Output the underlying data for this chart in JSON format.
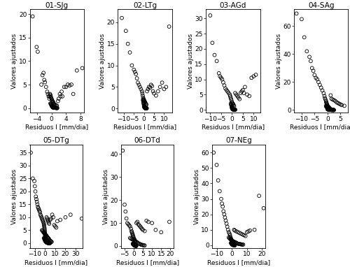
{
  "subplots": [
    {
      "title": "01-SJg",
      "xlim": [
        -6,
        9
      ],
      "ylim": [
        -1,
        21
      ],
      "xticks": [
        -4,
        0,
        4,
        8
      ],
      "yticks": [
        0,
        5,
        10,
        15,
        20
      ],
      "residuals": [
        -5.2,
        -4.1,
        -3.8,
        -2.8,
        -2.5,
        -2.2,
        -2.0,
        -1.8,
        -1.5,
        -1.2,
        -1.0,
        -0.8,
        -0.6,
        -0.5,
        -0.4,
        -0.3,
        -0.2,
        -0.1,
        0.0,
        0.1,
        0.2,
        0.3,
        0.4,
        0.5,
        0.6,
        0.7,
        0.8,
        1.0,
        1.2,
        1.5,
        1.8,
        2.0,
        2.3,
        2.5,
        2.8,
        3.0,
        3.5,
        4.0,
        4.5,
        5.0,
        5.5,
        6.0,
        7.0,
        8.5,
        -0.3,
        -0.2,
        -0.1,
        0.0,
        0.1,
        0.2,
        0.3,
        0.4,
        0.5,
        0.6,
        0.7,
        0.8,
        0.9,
        1.0,
        1.1,
        1.2,
        1.3,
        1.4,
        1.5,
        1.6,
        0.0,
        0.1,
        0.2,
        0.3,
        0.4,
        0.5,
        0.6
      ],
      "fitted": [
        19.5,
        13.0,
        12.0,
        5.0,
        7.0,
        7.5,
        6.0,
        5.5,
        4.5,
        3.5,
        3.0,
        2.5,
        2.0,
        2.5,
        3.0,
        2.8,
        2.5,
        2.2,
        2.0,
        1.8,
        1.6,
        1.5,
        1.3,
        1.2,
        1.0,
        0.9,
        0.8,
        0.7,
        0.6,
        0.5,
        1.5,
        2.0,
        3.0,
        2.5,
        3.5,
        2.5,
        4.5,
        4.5,
        5.0,
        4.8,
        5.0,
        3.0,
        8.0,
        8.5,
        1.0,
        0.9,
        0.8,
        0.7,
        0.6,
        0.5,
        0.4,
        0.3,
        0.2,
        0.15,
        0.12,
        0.1,
        0.08,
        0.06,
        0.05,
        0.04,
        0.03,
        0.02,
        0.01,
        0.01,
        0.5,
        0.4,
        0.3,
        0.2,
        0.15,
        0.1,
        0.05
      ]
    },
    {
      "title": "02-LTg",
      "xlim": [
        -13,
        14
      ],
      "ylim": [
        -1,
        23
      ],
      "xticks": [
        -10,
        -5,
        0,
        5,
        10
      ],
      "yticks": [
        0,
        5,
        10,
        15,
        20
      ],
      "residuals": [
        -11.0,
        -9.0,
        -8.0,
        -7.0,
        -6.0,
        -5.0,
        -4.5,
        -4.0,
        -3.5,
        -3.0,
        -2.5,
        -2.0,
        -1.5,
        -1.0,
        -0.8,
        -0.6,
        -0.4,
        -0.2,
        0.0,
        0.2,
        0.4,
        0.6,
        0.8,
        1.0,
        1.2,
        1.5,
        2.0,
        2.5,
        3.0,
        3.5,
        4.0,
        4.5,
        5.0,
        6.0,
        7.0,
        8.0,
        9.0,
        10.0,
        11.0,
        12.5,
        -0.5,
        -0.4,
        -0.3,
        -0.2,
        -0.1,
        0.0,
        0.1,
        0.2,
        0.3,
        0.4,
        0.5,
        0.6,
        0.7,
        0.8,
        0.9,
        1.0,
        1.1,
        1.2,
        1.3,
        1.4,
        0.0,
        0.1,
        0.2,
        0.3,
        0.4,
        0.5,
        0.6,
        0.7,
        0.8,
        0.9
      ],
      "fitted": [
        21.0,
        18.0,
        15.0,
        13.0,
        10.0,
        9.0,
        8.5,
        8.0,
        7.0,
        6.0,
        5.5,
        5.0,
        4.5,
        4.0,
        3.5,
        3.0,
        2.5,
        2.2,
        2.0,
        1.8,
        1.6,
        1.4,
        1.2,
        1.0,
        0.9,
        4.0,
        4.5,
        5.0,
        4.8,
        5.5,
        5.2,
        4.0,
        3.5,
        3.0,
        4.0,
        5.0,
        6.0,
        4.5,
        5.0,
        19.0,
        2.0,
        1.8,
        1.5,
        1.2,
        1.0,
        0.8,
        0.6,
        0.5,
        0.4,
        0.3,
        0.25,
        0.2,
        0.18,
        0.15,
        0.12,
        0.1,
        0.08,
        0.06,
        0.05,
        0.04,
        0.5,
        0.4,
        0.3,
        0.2,
        0.15,
        0.1,
        0.08,
        0.06,
        0.05,
        0.04
      ]
    },
    {
      "title": "03-AGd",
      "xlim": [
        -12,
        13
      ],
      "ylim": [
        -1,
        33
      ],
      "xticks": [
        -10,
        -5,
        0,
        5,
        10
      ],
      "yticks": [
        0,
        5,
        10,
        15,
        20,
        25,
        30
      ],
      "residuals": [
        -10.0,
        -9.0,
        -8.0,
        -7.0,
        -6.0,
        -5.5,
        -5.0,
        -4.5,
        -4.0,
        -3.5,
        -3.0,
        -2.5,
        -2.0,
        -1.5,
        -1.0,
        -0.8,
        -0.6,
        -0.4,
        -0.2,
        0.0,
        0.2,
        0.4,
        0.6,
        0.8,
        1.0,
        1.5,
        2.0,
        2.5,
        3.0,
        3.5,
        4.0,
        4.5,
        5.0,
        5.5,
        6.0,
        7.0,
        8.0,
        9.0,
        10.0,
        11.0,
        -0.5,
        -0.4,
        -0.3,
        -0.2,
        -0.1,
        0.0,
        0.1,
        0.2,
        0.3,
        0.4,
        0.5,
        0.6,
        0.7,
        0.8,
        0.9,
        1.0,
        1.1,
        1.2,
        1.3,
        1.4,
        0.0,
        0.1,
        0.2,
        0.3,
        0.4,
        0.5,
        0.6,
        0.7,
        0.8,
        0.9,
        1.0,
        1.1,
        1.2,
        1.3,
        1.4,
        1.5
      ],
      "fitted": [
        31.0,
        22.0,
        18.0,
        16.0,
        12.0,
        11.0,
        10.5,
        10.0,
        9.0,
        8.0,
        7.0,
        6.5,
        6.0,
        5.5,
        5.0,
        4.5,
        4.0,
        3.5,
        3.0,
        2.5,
        2.2,
        2.0,
        1.8,
        1.5,
        1.2,
        5.5,
        5.0,
        4.5,
        4.0,
        3.5,
        5.5,
        6.0,
        6.5,
        5.5,
        7.5,
        5.0,
        4.5,
        10.5,
        11.0,
        11.5,
        2.0,
        1.8,
        1.5,
        1.2,
        1.0,
        0.8,
        0.6,
        0.5,
        0.4,
        0.3,
        0.25,
        0.2,
        0.18,
        0.15,
        0.12,
        0.1,
        0.08,
        0.06,
        0.05,
        0.04,
        0.5,
        0.4,
        0.3,
        0.2,
        0.15,
        0.1,
        0.08,
        0.06,
        0.05,
        0.04,
        0.03,
        0.025,
        0.02,
        0.015,
        0.01,
        0.01
      ]
    },
    {
      "title": "04-SAg",
      "xlim": [
        -13,
        8
      ],
      "ylim": [
        -2,
        72
      ],
      "xticks": [
        -10,
        -5,
        0,
        5
      ],
      "yticks": [
        0,
        20,
        40,
        60
      ],
      "residuals": [
        -12.0,
        -10.0,
        -9.0,
        -8.0,
        -7.0,
        -6.5,
        -6.0,
        -5.5,
        -5.0,
        -4.5,
        -4.0,
        -3.5,
        -3.0,
        -2.5,
        -2.0,
        -1.5,
        -1.2,
        -1.0,
        -0.8,
        -0.6,
        -0.5,
        -0.4,
        -0.3,
        -0.2,
        -0.1,
        0.0,
        0.1,
        0.2,
        0.3,
        0.4,
        0.5,
        0.6,
        0.7,
        0.8,
        1.0,
        1.2,
        1.5,
        2.0,
        2.5,
        3.0,
        3.5,
        4.0,
        4.5,
        5.0,
        5.5,
        6.5,
        -0.6,
        -0.5,
        -0.4,
        -0.3,
        -0.2,
        -0.1,
        0.0,
        0.1,
        0.2,
        0.3,
        0.4,
        0.5,
        0.6,
        0.7,
        0.8,
        0.9,
        1.0,
        1.1,
        1.2,
        1.3,
        0.0,
        0.1,
        0.2,
        0.3,
        0.4,
        0.5,
        0.6,
        0.7,
        0.8,
        0.9,
        1.0,
        1.1,
        1.2,
        1.3,
        1.4,
        1.5,
        1.6,
        1.7,
        1.8,
        1.9,
        2.0,
        2.1,
        2.2,
        2.3,
        2.4,
        2.5
      ],
      "fitted": [
        69.0,
        65.0,
        52.0,
        42.0,
        38.0,
        35.0,
        30.0,
        28.0,
        25.0,
        23.0,
        22.0,
        20.0,
        18.0,
        16.0,
        14.0,
        12.0,
        10.0,
        8.5,
        7.5,
        6.5,
        5.5,
        5.0,
        4.5,
        4.0,
        3.5,
        3.0,
        2.8,
        2.5,
        2.2,
        2.0,
        1.8,
        1.6,
        1.5,
        1.2,
        1.0,
        10.5,
        8.0,
        7.5,
        7.0,
        6.5,
        5.5,
        5.0,
        4.5,
        4.0,
        3.5,
        3.0,
        3.0,
        2.5,
        2.2,
        2.0,
        1.8,
        1.5,
        1.2,
        1.0,
        0.9,
        0.8,
        0.7,
        0.6,
        0.5,
        0.45,
        0.4,
        0.35,
        0.3,
        0.25,
        0.2,
        0.18,
        0.5,
        0.45,
        0.4,
        0.35,
        0.3,
        0.25,
        0.2,
        0.18,
        0.15,
        0.12,
        0.1,
        0.09,
        0.08,
        0.07,
        0.06,
        0.05,
        0.04,
        0.03,
        0.025,
        0.02,
        0.015,
        0.012,
        0.01,
        0.008,
        0.006,
        0.005
      ]
    },
    {
      "title": "05-DTg",
      "xlim": [
        -15,
        37
      ],
      "ylim": [
        -2,
        38
      ],
      "xticks": [
        -10,
        0,
        10,
        20,
        30
      ],
      "yticks": [
        0,
        5,
        10,
        15,
        20,
        25,
        30,
        35
      ],
      "residuals": [
        -14.0,
        -12.0,
        -10.5,
        -10.0,
        -9.5,
        -9.0,
        -8.5,
        -8.0,
        -7.5,
        -7.0,
        -6.5,
        -6.0,
        -5.5,
        -5.0,
        -4.5,
        -4.0,
        -3.5,
        -3.0,
        -2.5,
        -2.0,
        -1.5,
        -1.2,
        -1.0,
        -0.8,
        -0.6,
        -0.5,
        -0.4,
        -0.3,
        -0.2,
        -0.1,
        0.0,
        0.2,
        0.4,
        0.6,
        0.8,
        1.0,
        1.5,
        2.0,
        2.5,
        3.0,
        3.5,
        4.0,
        5.0,
        6.0,
        7.0,
        8.0,
        9.0,
        10.0,
        11.0,
        12.0,
        15.0,
        20.0,
        25.0,
        36.0,
        -3.0,
        -2.5,
        -2.0,
        -1.5,
        -1.0,
        -0.5,
        0.0,
        0.5,
        1.0,
        1.5,
        2.0,
        2.5,
        3.0,
        3.5,
        4.0,
        4.5,
        5.0,
        5.5,
        6.0,
        6.5,
        -1.0,
        -0.8,
        -0.6,
        -0.4,
        -0.2,
        0.0,
        0.2,
        0.4,
        0.6,
        0.8,
        1.0,
        1.2,
        1.4,
        1.6,
        1.8,
        2.0,
        2.2,
        2.4,
        2.6,
        2.8,
        3.0,
        3.2,
        3.4,
        3.6,
        3.8,
        4.0,
        4.2,
        4.4,
        4.6,
        4.8
      ],
      "fitted": [
        35.0,
        25.0,
        24.0,
        22.0,
        20.0,
        18.0,
        17.0,
        16.0,
        15.0,
        14.0,
        13.5,
        13.0,
        12.5,
        12.0,
        11.0,
        10.5,
        10.0,
        9.5,
        9.0,
        8.5,
        8.0,
        7.5,
        7.0,
        6.5,
        6.0,
        5.5,
        5.0,
        4.5,
        4.0,
        3.5,
        3.0,
        2.5,
        2.0,
        1.8,
        1.5,
        1.2,
        10.0,
        9.5,
        9.0,
        8.5,
        8.0,
        7.5,
        9.0,
        9.5,
        11.0,
        10.0,
        7.0,
        6.5,
        6.0,
        8.5,
        9.0,
        10.0,
        11.0,
        9.5,
        5.0,
        4.8,
        4.5,
        4.2,
        4.0,
        3.8,
        3.5,
        3.2,
        3.0,
        2.8,
        2.5,
        2.2,
        2.0,
        1.8,
        1.5,
        1.2,
        1.0,
        0.8,
        0.6,
        0.5,
        2.0,
        1.8,
        1.6,
        1.4,
        1.2,
        1.0,
        0.8,
        0.7,
        0.6,
        0.5,
        0.4,
        0.35,
        0.3,
        0.25,
        0.2,
        0.18,
        0.15,
        0.12,
        0.1,
        0.08,
        0.06,
        0.05,
        0.04,
        0.03,
        0.025,
        0.02,
        0.015,
        0.01,
        0.008,
        0.005
      ]
    },
    {
      "title": "06-DTd",
      "xlim": [
        -7,
        22
      ],
      "ylim": [
        -1,
        44
      ],
      "xticks": [
        -5,
        0,
        5,
        10,
        15,
        20
      ],
      "yticks": [
        0,
        10,
        20,
        30,
        40
      ],
      "residuals": [
        -6.0,
        -5.0,
        -4.5,
        -4.0,
        -3.5,
        -3.0,
        -2.5,
        -2.0,
        -1.5,
        -1.2,
        -1.0,
        -0.8,
        -0.6,
        -0.4,
        -0.2,
        0.0,
        0.2,
        0.4,
        0.6,
        0.8,
        1.0,
        1.5,
        2.0,
        2.5,
        3.0,
        3.5,
        4.0,
        4.5,
        5.0,
        6.0,
        7.0,
        8.0,
        10.0,
        12.0,
        15.0,
        19.5,
        -2.0,
        -1.5,
        -1.0,
        -0.5,
        0.0,
        0.5,
        1.0,
        1.5,
        2.0,
        2.5,
        3.0,
        3.5,
        4.0,
        4.5,
        5.0,
        5.5,
        6.0,
        -0.5,
        -0.4,
        -0.3,
        -0.2,
        -0.1,
        0.0,
        0.1,
        0.2,
        0.3,
        0.4,
        0.5,
        0.6,
        0.7,
        0.8,
        0.9,
        1.0,
        1.1,
        1.2,
        1.3,
        1.4
      ],
      "fitted": [
        41.5,
        18.0,
        15.0,
        12.0,
        10.0,
        9.5,
        9.0,
        8.5,
        7.5,
        6.5,
        6.0,
        5.5,
        5.0,
        4.5,
        4.0,
        3.5,
        3.0,
        2.8,
        2.5,
        2.2,
        2.0,
        10.0,
        10.5,
        9.5,
        9.0,
        8.5,
        8.0,
        7.5,
        7.0,
        6.5,
        11.0,
        10.5,
        10.0,
        7.0,
        6.0,
        10.5,
        3.5,
        3.2,
        3.0,
        2.8,
        2.5,
        2.2,
        2.0,
        1.8,
        1.5,
        1.2,
        1.0,
        0.8,
        0.6,
        0.5,
        0.4,
        0.3,
        0.25,
        1.0,
        0.9,
        0.8,
        0.7,
        0.6,
        0.5,
        0.4,
        0.35,
        0.3,
        0.25,
        0.2,
        0.18,
        0.15,
        0.12,
        0.1,
        0.08,
        0.06,
        0.05,
        0.04,
        0.03
      ]
    },
    {
      "title": "07-NEg",
      "xlim": [
        -13,
        22
      ],
      "ylim": [
        -2,
        65
      ],
      "xticks": [
        -10,
        0,
        10,
        20
      ],
      "yticks": [
        0,
        10,
        20,
        30,
        40,
        50,
        60
      ],
      "residuals": [
        -12.0,
        -10.0,
        -9.0,
        -8.0,
        -7.0,
        -6.5,
        -6.0,
        -5.5,
        -5.0,
        -4.5,
        -4.0,
        -3.5,
        -3.0,
        -2.5,
        -2.0,
        -1.5,
        -1.2,
        -1.0,
        -0.8,
        -0.5,
        -0.3,
        -0.2,
        -0.1,
        0.0,
        0.2,
        0.4,
        0.6,
        0.8,
        1.0,
        1.5,
        2.0,
        3.0,
        4.0,
        5.0,
        6.0,
        7.0,
        8.0,
        9.0,
        10.0,
        11.0,
        12.0,
        15.0,
        18.0,
        21.0,
        -2.0,
        -1.5,
        -1.0,
        -0.5,
        0.0,
        0.5,
        1.0,
        1.5,
        2.0,
        2.5,
        3.0,
        3.5,
        4.0,
        4.5,
        5.0,
        5.5,
        6.0,
        6.5,
        7.0,
        7.5,
        -0.5,
        -0.4,
        -0.3,
        -0.2,
        -0.1,
        0.0,
        0.1,
        0.2,
        0.3,
        0.4,
        0.5,
        0.6,
        0.7,
        0.8,
        0.9,
        1.0,
        1.1,
        1.2,
        1.3,
        1.4,
        1.5,
        1.6,
        1.7,
        1.8,
        1.9,
        2.0
      ],
      "fitted": [
        60.0,
        52.0,
        42.0,
        35.0,
        30.0,
        27.0,
        25.0,
        22.0,
        20.0,
        18.0,
        16.0,
        14.0,
        12.0,
        10.0,
        8.5,
        7.5,
        6.5,
        5.5,
        4.8,
        4.2,
        3.8,
        3.5,
        3.2,
        3.0,
        2.8,
        2.5,
        2.2,
        2.0,
        1.8,
        10.0,
        9.5,
        9.0,
        8.5,
        8.0,
        7.5,
        7.0,
        6.5,
        6.0,
        8.5,
        9.0,
        9.5,
        10.0,
        32.0,
        24.0,
        5.0,
        4.5,
        4.0,
        3.5,
        3.0,
        2.8,
        2.5,
        2.2,
        2.0,
        1.8,
        1.5,
        1.2,
        1.0,
        0.9,
        0.8,
        0.7,
        0.6,
        0.5,
        0.45,
        0.4,
        1.5,
        1.3,
        1.1,
        1.0,
        0.9,
        0.8,
        0.7,
        0.6,
        0.5,
        0.4,
        0.35,
        0.3,
        0.25,
        0.2,
        0.18,
        0.15,
        0.12,
        0.1,
        0.08,
        0.06,
        0.05,
        0.04,
        0.03,
        0.025,
        0.02,
        0.015
      ]
    }
  ],
  "xlabel": "Residuos I [mm/dia]",
  "ylabel": "Valores ajustados",
  "bg_color": "#ffffff",
  "marker_size": 12,
  "marker_facecolor": "none",
  "marker_edgecolor": "#000000",
  "marker_linewidth": 0.6,
  "title_fontsize": 7.5,
  "label_fontsize": 6.5,
  "tick_fontsize": 6.5
}
